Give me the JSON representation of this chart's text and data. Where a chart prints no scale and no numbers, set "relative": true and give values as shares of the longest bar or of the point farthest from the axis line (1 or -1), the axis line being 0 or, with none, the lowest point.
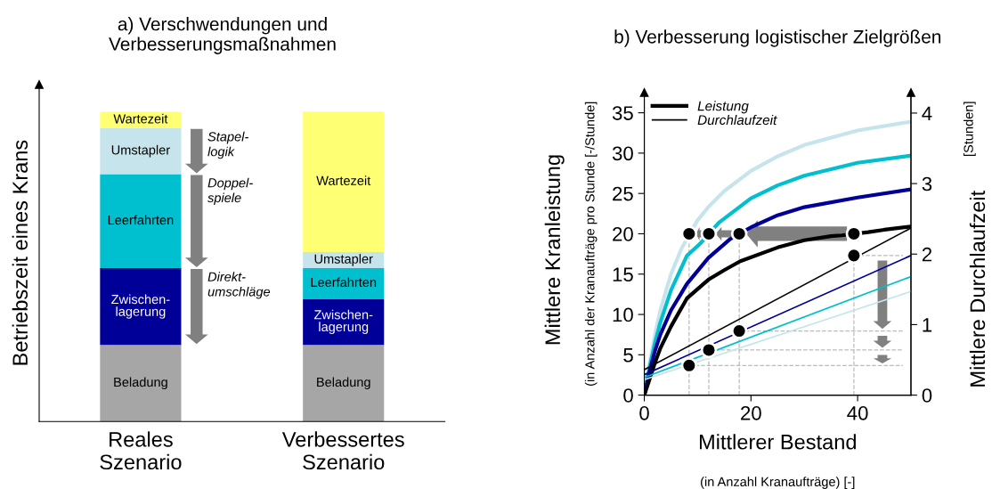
{
  "chart_data": [
    {
      "type": "bar",
      "title": "a) Verschwendungen und\nVerbesserungsmaßnahmen",
      "ylabel": "Betriebszeit eines Krans",
      "categories": [
        "Reales\nSzenario",
        "Verbessertes\nSzenario"
      ],
      "stacked": true,
      "relative": true,
      "series": [
        {
          "name": "Beladung",
          "color": "#a6a6a6",
          "values": [
            0.247,
            0.247
          ]
        },
        {
          "name": "Zwischen-\nlagerung",
          "color": "#000099",
          "values": [
            0.248,
            0.149
          ]
        },
        {
          "name": "Leerfahrten",
          "color": "#00bfcf",
          "values": [
            0.303,
            0.099
          ]
        },
        {
          "name": "Umstapler",
          "color": "#c5e4ec",
          "values": [
            0.149,
            0.052
          ]
        },
        {
          "name": "Wartezeit",
          "color": "#ffff73",
          "values": [
            0.052,
            0.453
          ]
        }
      ],
      "annotations": [
        "Stapel-\nlogik",
        "Doppel-\nspiele",
        "Direkt-\numschläge"
      ]
    },
    {
      "type": "line",
      "title": "b) Verbesserung logistischer Zielgrößen",
      "xlabel": "Mittlerer Bestand",
      "ylabel": "Mittlere Kranleistung",
      "y2label": "Mittlere Durchlaufzeit",
      "xlim": [
        0,
        50
      ],
      "xticks": [
        0,
        20,
        40
      ],
      "ylim": [
        0,
        37.5
      ],
      "yticks": [
        0,
        5,
        10,
        15,
        20,
        25,
        30,
        35
      ],
      "y2lim": [
        0,
        4.29
      ],
      "y2ticks": [
        0,
        1,
        2,
        3,
        4
      ],
      "legend": "top left",
      "grid": false,
      "line_style": "solid",
      "series": [
        {
          "color": "#c5e4ec",
          "x": [
            0,
            1,
            2,
            3,
            5,
            7,
            10,
            12,
            15,
            20,
            25,
            30,
            40,
            50
          ],
          "values": [
            0,
            4,
            7.5,
            10.5,
            15,
            18.2,
            21.7,
            23.3,
            25.3,
            27.8,
            29.6,
            31,
            32.8,
            33.9
          ]
        },
        {
          "color": "#00bfcf",
          "x": [
            0,
            1,
            2,
            3,
            5,
            8,
            10.5,
            14,
            20,
            25,
            30,
            40,
            50
          ],
          "values": [
            0,
            3.5,
            6.5,
            9,
            13,
            17.3,
            18.8,
            21.4,
            24.4,
            26,
            27.2,
            28.8,
            29.7
          ]
        },
        {
          "color": "#000099",
          "x": [
            0,
            1,
            2,
            3,
            5,
            8,
            12,
            16,
            20,
            25,
            30,
            40,
            50
          ],
          "values": [
            0,
            3,
            5.5,
            7.5,
            10.5,
            13.8,
            17,
            19.3,
            20.8,
            22.3,
            23.3,
            24.5,
            25.5
          ]
        },
        {
          "name": "Leistung",
          "color": "#000000",
          "x": [
            0,
            1,
            2,
            3,
            5,
            8,
            12,
            15,
            18,
            25,
            30,
            35,
            37,
            42,
            45,
            50
          ],
          "values": [
            0,
            2,
            4,
            5.8,
            8.5,
            12,
            14.3,
            15.5,
            16.6,
            18.3,
            19.2,
            19.7,
            19.8,
            20.2,
            20.5,
            20.9
          ]
        },
        {
          "color": "#c5e4ec",
          "axis": "y2",
          "x": [
            0,
            50
          ],
          "values": [
            0.22,
            1.47
          ]
        },
        {
          "color": "#00bfcf",
          "axis": "y2",
          "x": [
            0,
            50
          ],
          "values": [
            0.25,
            1.68
          ]
        },
        {
          "color": "#000099",
          "axis": "y2",
          "x": [
            0,
            50
          ],
          "values": [
            0.29,
            1.98
          ]
        },
        {
          "name": "Durchlaufzeit",
          "color": "#000000",
          "axis": "y2",
          "x": [
            0,
            50
          ],
          "values": [
            0.36,
            2.37
          ]
        },
        {
          "color": "#bbbbbb",
          "line_style": "dashed",
          "x": [
            8.4,
            8.4
          ],
          "values": [
            0,
            20
          ]
        },
        {
          "color": "#bbbbbb",
          "line_style": "dashed",
          "x": [
            12.1,
            12.1
          ],
          "values": [
            0,
            20
          ]
        },
        {
          "color": "#bbbbbb",
          "line_style": "dashed",
          "x": [
            17.8,
            17.8
          ],
          "values": [
            0,
            20
          ]
        },
        {
          "color": "#bbbbbb",
          "line_style": "dashed",
          "x": [
            39.3,
            39.3
          ],
          "values": [
            0,
            17.3
          ]
        },
        {
          "color": "#bbbbbb",
          "line_style": "dashed",
          "axis": "y2",
          "x": [
            39.3,
            48.5
          ],
          "values": [
            1.98,
            1.98
          ]
        },
        {
          "color": "#bbbbbb",
          "line_style": "dashed",
          "axis": "y2",
          "x": [
            17.8,
            48.5
          ],
          "values": [
            0.91,
            0.91
          ]
        },
        {
          "color": "#bbbbbb",
          "line_style": "dashed",
          "axis": "y2",
          "x": [
            12.1,
            48.5
          ],
          "values": [
            0.64,
            0.64
          ]
        },
        {
          "color": "#bbbbbb",
          "line_style": "dashed",
          "axis": "y2",
          "x": [
            8.4,
            48.5
          ],
          "values": [
            0.42,
            0.42
          ]
        },
        {
          "type": "scatter",
          "color": "#000000",
          "marker": "circle",
          "x": [
            8.4,
            12.1,
            17.8,
            39.3
          ],
          "values": [
            20,
            20,
            20,
            20
          ]
        },
        {
          "type": "scatter",
          "color": "#000000",
          "marker": "circle",
          "axis": "y2",
          "x": [
            8.4,
            12.1,
            17.8,
            39.3
          ],
          "values": [
            0.42,
            0.64,
            0.91,
            1.98
          ]
        }
      ],
      "annotations": [
        "(in Anzahl der Kranaufträge pro Stunde [-/Stunde]",
        "[Stunden]",
        "(in Anzahl Kranaufträge) [-]"
      ]
    }
  ]
}
